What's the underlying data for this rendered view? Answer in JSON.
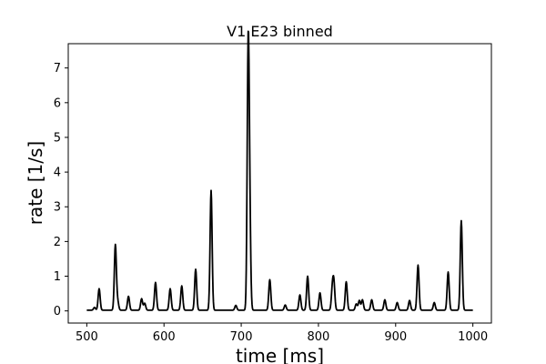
{
  "chart_data": {
    "type": "line",
    "title": "V1 E23 binned",
    "xlabel": "time [ms]",
    "ylabel": "rate [1/s]",
    "xlim": [
      476,
      1024
    ],
    "ylim": [
      -0.35,
      7.7
    ],
    "xticks": [
      500,
      600,
      700,
      800,
      900,
      1000
    ],
    "yticks": [
      0,
      1,
      2,
      3,
      4,
      5,
      6,
      7
    ],
    "grid": false,
    "line_color": "#000000",
    "series": [
      {
        "baseline": 0.02,
        "x_range": [
          500,
          1000
        ],
        "peaks": [
          [
            510,
            0.08
          ],
          [
            516,
            0.62
          ],
          [
            537,
            1.88
          ],
          [
            540,
            0.25
          ],
          [
            554,
            0.4
          ],
          [
            571,
            0.33
          ],
          [
            575,
            0.2
          ],
          [
            589,
            0.8
          ],
          [
            608,
            0.62
          ],
          [
            623,
            0.7
          ],
          [
            641,
            1.18
          ],
          [
            661,
            3.45
          ],
          [
            693,
            0.14
          ],
          [
            709,
            7.3
          ],
          [
            711,
            2.4
          ],
          [
            737,
            0.88
          ],
          [
            757,
            0.15
          ],
          [
            776,
            0.44
          ],
          [
            786,
            0.98
          ],
          [
            802,
            0.5
          ],
          [
            818,
            0.58
          ],
          [
            820,
            0.75
          ],
          [
            836,
            0.82
          ],
          [
            849,
            0.18
          ],
          [
            853,
            0.28
          ],
          [
            857,
            0.3
          ],
          [
            869,
            0.3
          ],
          [
            886,
            0.3
          ],
          [
            902,
            0.22
          ],
          [
            918,
            0.28
          ],
          [
            929,
            1.3
          ],
          [
            950,
            0.22
          ],
          [
            968,
            1.1
          ],
          [
            985,
            2.58
          ]
        ]
      }
    ]
  }
}
